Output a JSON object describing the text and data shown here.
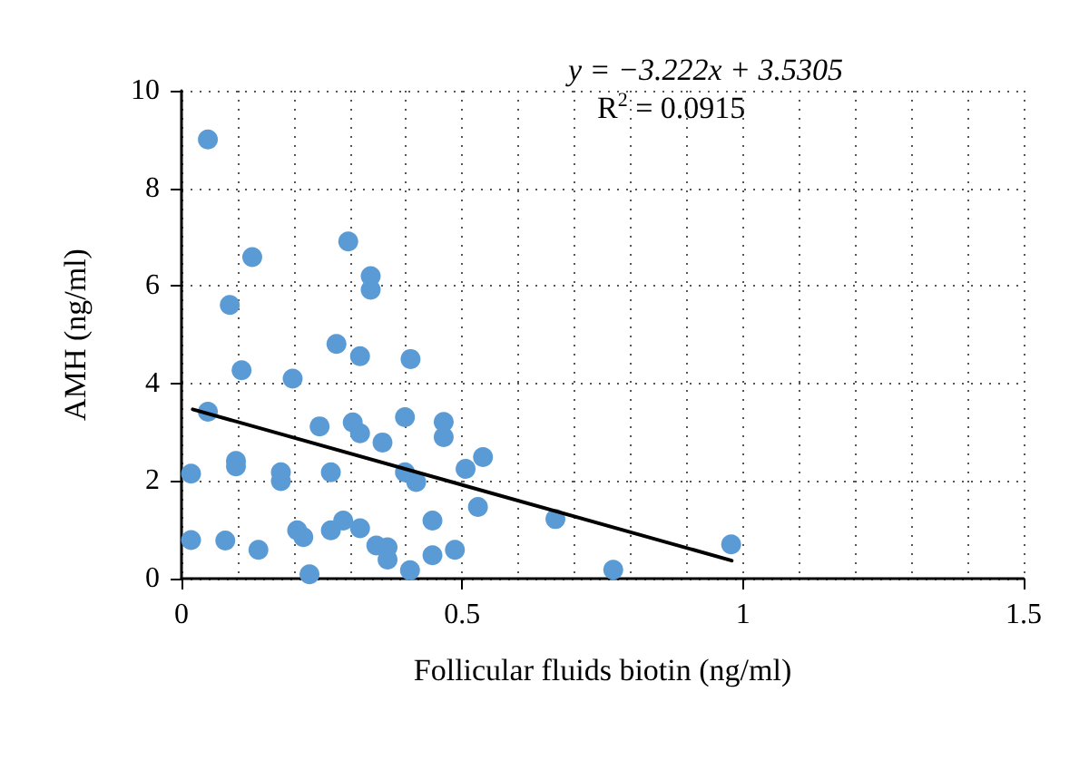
{
  "chart_data": {
    "type": "scatter",
    "xlabel": "Follicular fluids biotin (ng/ml)",
    "ylabel": "AMH (ng/ml)",
    "annotations": [
      "y = −3.222x + 3.5305",
      "R$^{2}$ = 0.0915"
    ],
    "xlim": [
      0,
      1.5
    ],
    "xticks": [
      0,
      0.5,
      1,
      1.5
    ],
    "ylim": [
      0,
      10
    ],
    "yticks": [
      0,
      2,
      4,
      6,
      8,
      10
    ],
    "grid": true,
    "marker": "circle",
    "series": [
      {
        "color": "#5b9bd5",
        "x": [
          0.047,
          0.297,
          0.126,
          0.337,
          0.337,
          0.086,
          0.276,
          0.318,
          0.408,
          0.107,
          0.198,
          0.047,
          0.246,
          0.305,
          0.318,
          0.398,
          0.467,
          0.467,
          0.358,
          0.097,
          0.097,
          0.506,
          0.537,
          0.017,
          0.177,
          0.177,
          0.266,
          0.398,
          0.418,
          0.528,
          0.447,
          0.206,
          0.217,
          0.266,
          0.288,
          0.318,
          0.347,
          0.367,
          0.367,
          0.407,
          0.447,
          0.487,
          0.017,
          0.078,
          0.137,
          0.228,
          0.666,
          0.769,
          0.979
        ],
        "values": [
          9.0,
          6.91,
          6.59,
          6.2,
          5.92,
          5.61,
          4.81,
          4.56,
          4.5,
          4.27,
          4.1,
          3.42,
          3.12,
          3.2,
          2.98,
          3.31,
          3.21,
          2.9,
          2.79,
          2.41,
          2.3,
          2.25,
          2.49,
          2.15,
          2.18,
          2.0,
          2.18,
          2.18,
          1.98,
          1.47,
          1.19,
          0.99,
          0.85,
          0.99,
          1.19,
          1.03,
          0.68,
          0.64,
          0.39,
          0.17,
          0.48,
          0.59,
          0.79,
          0.78,
          0.59,
          0.09,
          1.22,
          0.18,
          0.7
        ]
      },
      {
        "type": "line",
        "color": "#000000",
        "marker": "none",
        "line_style": "solid",
        "x": [
          0.02,
          0.98
        ],
        "values": [
          3.47,
          0.37
        ]
      }
    ]
  }
}
